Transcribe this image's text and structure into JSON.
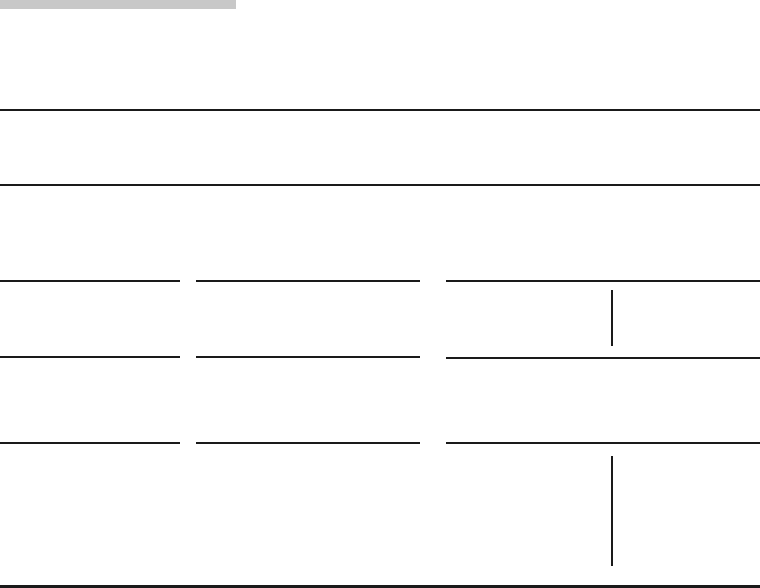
{
  "colors": {
    "rule": "#1a1a1a",
    "header_bar": "#c8c8c8",
    "background": "#ffffff"
  }
}
